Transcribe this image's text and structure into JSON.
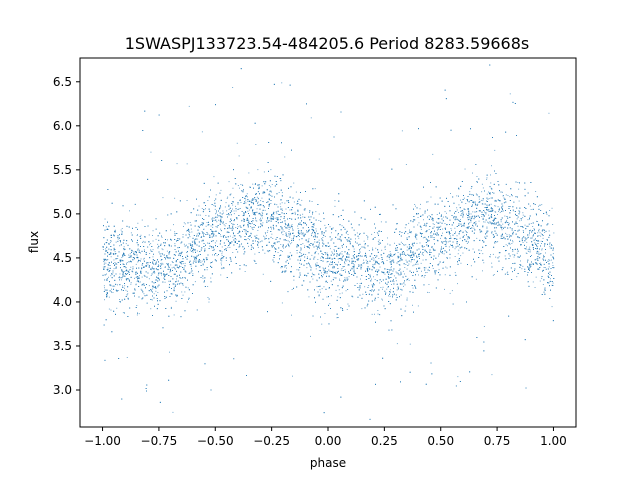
{
  "chart_data": {
    "type": "scatter",
    "title": "1SWASPJ133723.54-484205.6 Period 8283.59668s",
    "xlabel": "phase",
    "ylabel": "flux",
    "xlim": [
      -1.1,
      1.1
    ],
    "ylim": [
      2.58,
      6.77
    ],
    "xticks": [
      "−1.00",
      "−0.75",
      "−0.50",
      "−0.25",
      "0.00",
      "0.25",
      "0.50",
      "0.75",
      "1.00"
    ],
    "xtick_values": [
      -1.0,
      -0.75,
      -0.5,
      -0.25,
      0.0,
      0.25,
      0.5,
      0.75,
      1.0
    ],
    "yticks": [
      "3.0",
      "3.5",
      "4.0",
      "4.5",
      "5.0",
      "5.5",
      "6.0",
      "6.5"
    ],
    "ytick_values": [
      3.0,
      3.5,
      4.0,
      4.5,
      5.0,
      5.5,
      6.0,
      6.5
    ],
    "grid": false,
    "point_color": "#1f77b4",
    "series": [
      {
        "phase_range": [
          -1.0,
          1.0
        ],
        "trend_points": [
          {
            "x": -1.0,
            "y": 4.45
          },
          {
            "x": -0.75,
            "y": 4.37
          },
          {
            "x": -0.5,
            "y": 4.75
          },
          {
            "x": -0.3,
            "y": 4.98
          },
          {
            "x": -0.1,
            "y": 4.68
          },
          {
            "x": 0.0,
            "y": 4.47
          },
          {
            "x": 0.25,
            "y": 4.37
          },
          {
            "x": 0.5,
            "y": 4.75
          },
          {
            "x": 0.7,
            "y": 4.98
          },
          {
            "x": 0.9,
            "y": 4.68
          },
          {
            "x": 1.0,
            "y": 4.47
          }
        ],
        "scatter_sigma": 0.25,
        "approx_point_count": 9000
      }
    ]
  }
}
